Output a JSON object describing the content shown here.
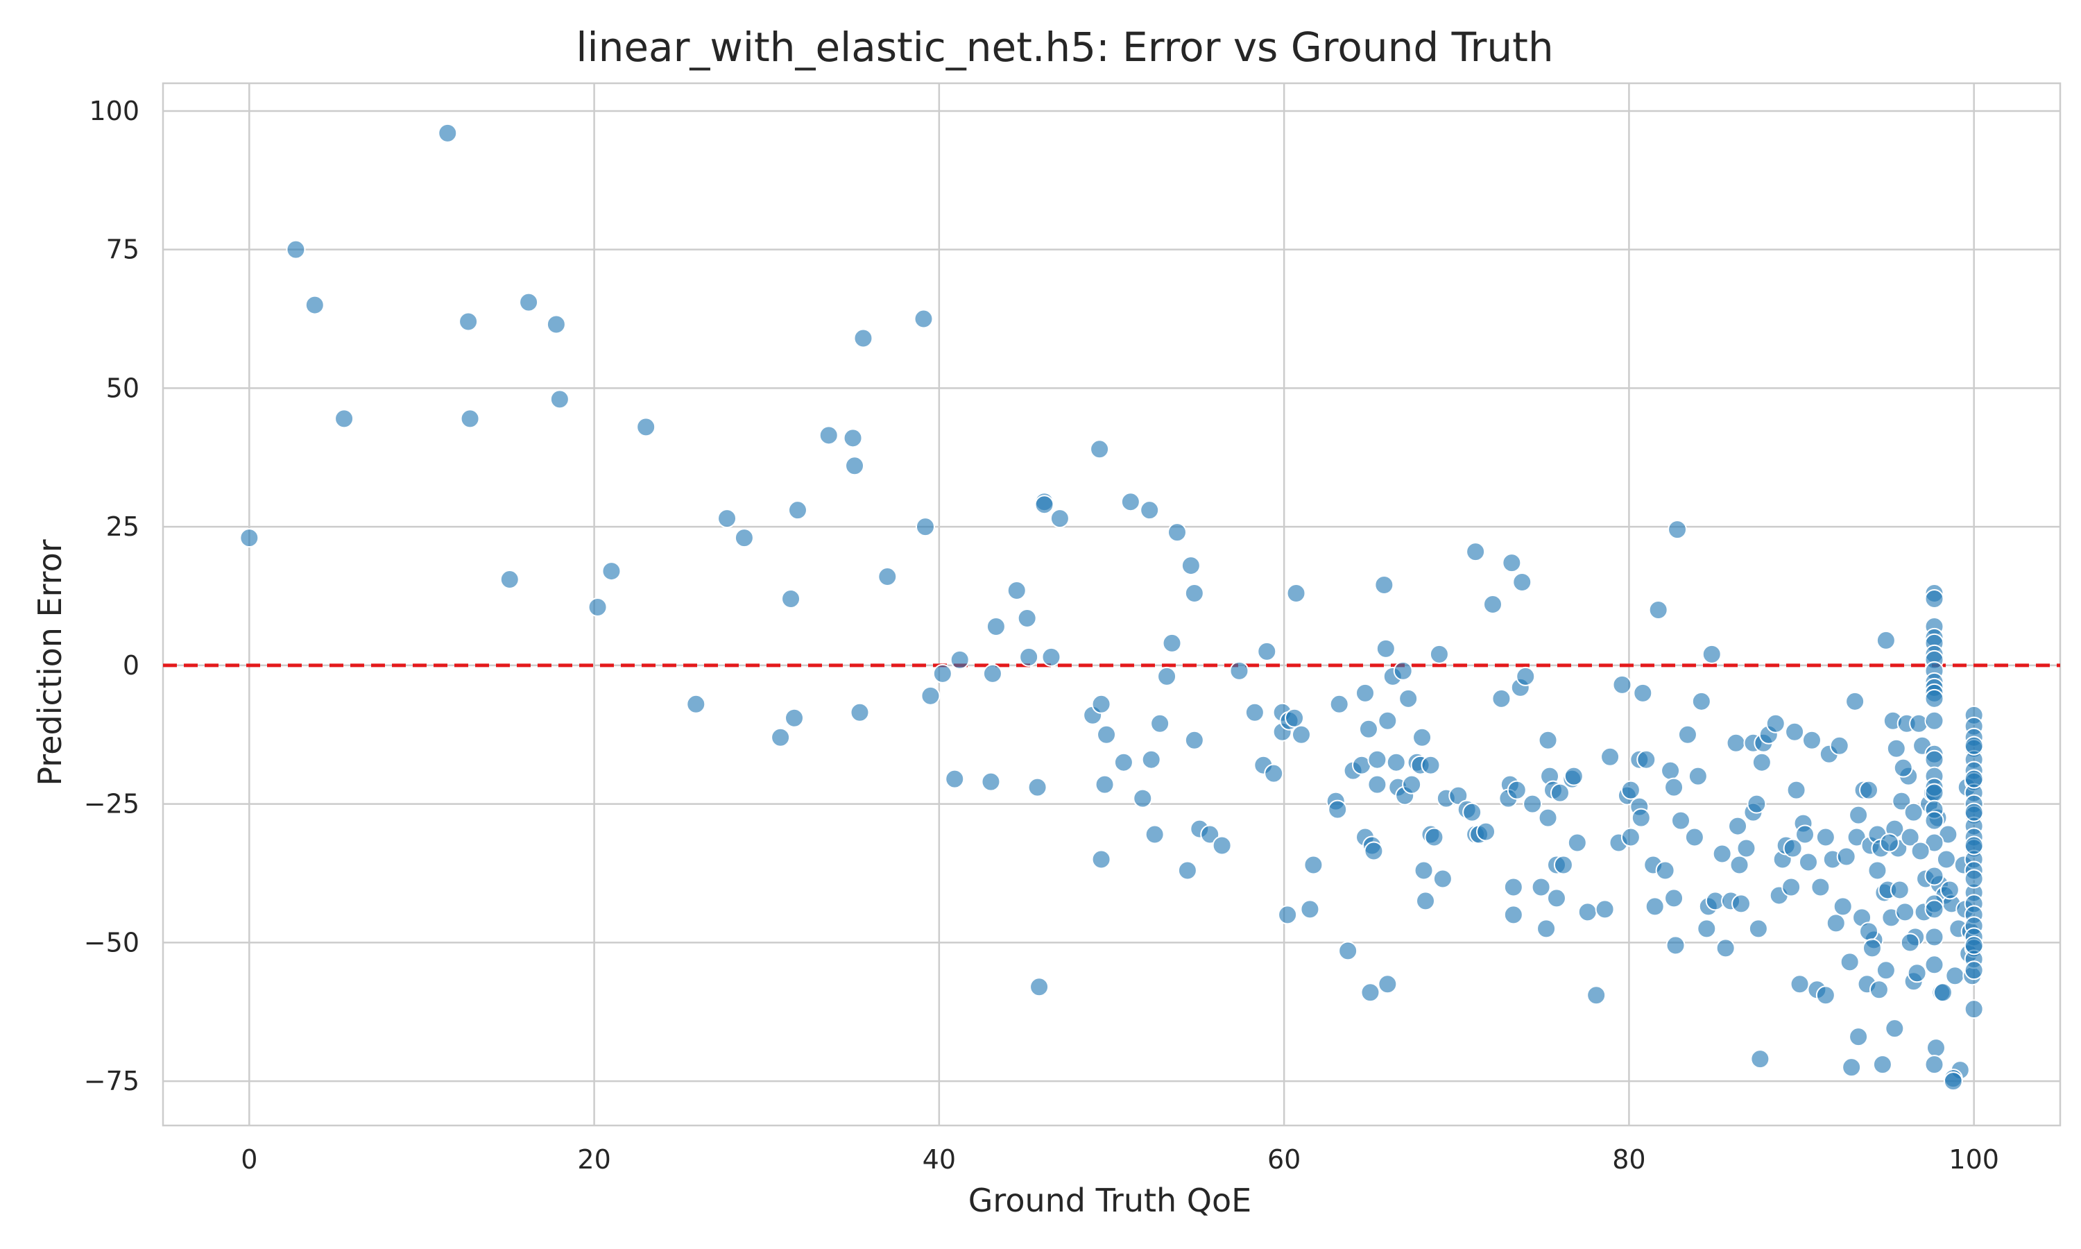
{
  "chart_data": {
    "type": "scatter",
    "title": "linear_with_elastic_net.h5: Error vs Ground Truth",
    "xlabel": "Ground Truth QoE",
    "ylabel": "Prediction Error",
    "xlim": [
      -5,
      105
    ],
    "ylim": [
      -83,
      105
    ],
    "xticks": [
      0,
      20,
      40,
      60,
      80,
      100
    ],
    "yticks": [
      -75,
      -50,
      -25,
      0,
      25,
      50,
      75,
      100
    ],
    "xtick_labels": [
      "0",
      "20",
      "40",
      "60",
      "80",
      "100"
    ],
    "ytick_labels": [
      "−75",
      "−50",
      "−25",
      "0",
      "25",
      "50",
      "75",
      "100"
    ],
    "grid": true,
    "reference_line": {
      "y": 0,
      "style": "dashed",
      "color": "#e41a1c"
    },
    "point_color": "#1f77b4",
    "points": [
      [
        0,
        23
      ],
      [
        2.7,
        75
      ],
      [
        3.8,
        65
      ],
      [
        5.5,
        44.5
      ],
      [
        11.5,
        96
      ],
      [
        12.7,
        62
      ],
      [
        12.8,
        44.5
      ],
      [
        15.1,
        15.5
      ],
      [
        16.2,
        65.5
      ],
      [
        17.8,
        61.5
      ],
      [
        18,
        48
      ],
      [
        20.2,
        10.5
      ],
      [
        21,
        17
      ],
      [
        23,
        43
      ],
      [
        25.9,
        -7
      ],
      [
        27.7,
        26.5
      ],
      [
        28.7,
        23
      ],
      [
        30.8,
        -13
      ],
      [
        31.4,
        12
      ],
      [
        31.6,
        -9.5
      ],
      [
        31.8,
        28
      ],
      [
        33.6,
        41.5
      ],
      [
        35,
        41
      ],
      [
        35.1,
        36
      ],
      [
        35.4,
        -8.5
      ],
      [
        35.6,
        59
      ],
      [
        37,
        16
      ],
      [
        39.1,
        62.5
      ],
      [
        39.2,
        25
      ],
      [
        39.5,
        -5.5
      ],
      [
        40.2,
        -1.5
      ],
      [
        40.9,
        -20.5
      ],
      [
        41.2,
        1
      ],
      [
        43.1,
        -1.5
      ],
      [
        43.3,
        7
      ],
      [
        43,
        -21
      ],
      [
        44.5,
        13.5
      ],
      [
        45.1,
        8.5
      ],
      [
        45.2,
        1.5
      ],
      [
        45.7,
        -22
      ],
      [
        45.8,
        -58
      ],
      [
        46.1,
        29.5
      ],
      [
        46.1,
        29
      ],
      [
        46.5,
        1.5
      ],
      [
        47,
        26.5
      ],
      [
        48.9,
        -9
      ],
      [
        49.3,
        39
      ],
      [
        49.4,
        -7
      ],
      [
        49.4,
        -35
      ],
      [
        49.6,
        -21.5
      ],
      [
        49.7,
        -12.5
      ],
      [
        50.7,
        -17.5
      ],
      [
        51.1,
        29.5
      ],
      [
        51.8,
        -24
      ],
      [
        52.2,
        28
      ],
      [
        52.3,
        -17
      ],
      [
        52.5,
        -30.5
      ],
      [
        52.8,
        -10.5
      ],
      [
        53.2,
        -2
      ],
      [
        53.5,
        4
      ],
      [
        53.8,
        24
      ],
      [
        54.4,
        -37
      ],
      [
        54.6,
        18
      ],
      [
        54.8,
        13
      ],
      [
        54.8,
        -13.5
      ],
      [
        55.1,
        -29.5
      ],
      [
        55.7,
        -30.5
      ],
      [
        56.4,
        -32.5
      ],
      [
        57.4,
        -1
      ],
      [
        58.3,
        -8.5
      ],
      [
        58.8,
        -18
      ],
      [
        59,
        2.5
      ],
      [
        59.4,
        -19.5
      ],
      [
        59.9,
        -12
      ],
      [
        59.9,
        -8.5
      ],
      [
        60.2,
        -45
      ],
      [
        60.3,
        -10
      ],
      [
        60.6,
        -9.5
      ],
      [
        60.7,
        13
      ],
      [
        61,
        -12.5
      ],
      [
        61.5,
        -44
      ],
      [
        61.7,
        -36
      ],
      [
        63,
        -24.5
      ],
      [
        63.1,
        -26
      ],
      [
        63.2,
        -7
      ],
      [
        63.7,
        -51.5
      ],
      [
        64,
        -19
      ],
      [
        64.5,
        -18
      ],
      [
        64.7,
        -5
      ],
      [
        64.7,
        -31
      ],
      [
        64.9,
        -11.5
      ],
      [
        65,
        -59
      ],
      [
        65.1,
        -32.5
      ],
      [
        65.2,
        -33.5
      ],
      [
        65.4,
        -21.5
      ],
      [
        65.4,
        -17
      ],
      [
        65.8,
        14.5
      ],
      [
        65.9,
        3
      ],
      [
        66,
        -57.5
      ],
      [
        66,
        -10
      ],
      [
        66.3,
        -2
      ],
      [
        66.5,
        -17.5
      ],
      [
        66.6,
        -22
      ],
      [
        66.9,
        -1
      ],
      [
        67,
        -23.5
      ],
      [
        67.2,
        -6
      ],
      [
        67.4,
        -21.5
      ],
      [
        67.7,
        -17.5
      ],
      [
        67.9,
        -18
      ],
      [
        68,
        -13
      ],
      [
        68.1,
        -37
      ],
      [
        68.2,
        -42.5
      ],
      [
        68.5,
        -18
      ],
      [
        68.5,
        -30.5
      ],
      [
        68.7,
        -31
      ],
      [
        69,
        2
      ],
      [
        69.2,
        -38.5
      ],
      [
        69.4,
        -24
      ],
      [
        70.1,
        -23.5
      ],
      [
        70.6,
        -26
      ],
      [
        70.9,
        -26.5
      ],
      [
        71.1,
        20.5
      ],
      [
        71.1,
        -30.5
      ],
      [
        71.3,
        -30.5
      ],
      [
        71.7,
        -30
      ],
      [
        72.1,
        11
      ],
      [
        72.6,
        -6
      ],
      [
        73.1,
        -21.5
      ],
      [
        73,
        -24
      ],
      [
        73.2,
        18.5
      ],
      [
        73.3,
        -45
      ],
      [
        73.3,
        -40
      ],
      [
        73.5,
        -22.5
      ],
      [
        73.7,
        -4
      ],
      [
        73.8,
        15
      ],
      [
        74,
        -2
      ],
      [
        74.4,
        -25
      ],
      [
        74.9,
        -40
      ],
      [
        75.2,
        -47.5
      ],
      [
        75.3,
        -27.5
      ],
      [
        75.3,
        -13.5
      ],
      [
        75.4,
        -20
      ],
      [
        75.6,
        -22.5
      ],
      [
        75.8,
        -36
      ],
      [
        75.8,
        -42
      ],
      [
        76,
        -23
      ],
      [
        76.2,
        -36
      ],
      [
        76.7,
        -20.5
      ],
      [
        76.8,
        -20
      ],
      [
        77,
        -32
      ],
      [
        77.6,
        -44.5
      ],
      [
        78.1,
        -59.5
      ],
      [
        78.6,
        -44
      ],
      [
        78.9,
        -16.5
      ],
      [
        79.4,
        -32
      ],
      [
        79.6,
        -3.5
      ],
      [
        79.9,
        -23.5
      ],
      [
        80.1,
        -31
      ],
      [
        80.1,
        -22.5
      ],
      [
        80.6,
        -17
      ],
      [
        80.6,
        -25.5
      ],
      [
        80.7,
        -27.5
      ],
      [
        80.8,
        -5
      ],
      [
        81,
        -17
      ],
      [
        81.4,
        -36
      ],
      [
        81.5,
        -43.5
      ],
      [
        81.7,
        10
      ],
      [
        82.1,
        -37
      ],
      [
        82.4,
        -19
      ],
      [
        82.6,
        -42
      ],
      [
        82.6,
        -22
      ],
      [
        82.7,
        -50.5
      ],
      [
        82.8,
        24.5
      ],
      [
        83,
        -28
      ],
      [
        83.4,
        -12.5
      ],
      [
        83.8,
        -31
      ],
      [
        84,
        -20
      ],
      [
        84.2,
        -6.5
      ],
      [
        84.5,
        -47.5
      ],
      [
        84.6,
        -43.5
      ],
      [
        84.8,
        2
      ],
      [
        85,
        -42.5
      ],
      [
        85.4,
        -34
      ],
      [
        85.6,
        -51
      ],
      [
        85.9,
        -42.5
      ],
      [
        86.2,
        -14
      ],
      [
        86.3,
        -29
      ],
      [
        86.4,
        -36
      ],
      [
        86.5,
        -43
      ],
      [
        86.8,
        -33
      ],
      [
        87.2,
        -14
      ],
      [
        87.2,
        -26.5
      ],
      [
        87.4,
        -25
      ],
      [
        87.5,
        -47.5
      ],
      [
        87.6,
        -71
      ],
      [
        87.7,
        -17.5
      ],
      [
        87.8,
        -14
      ],
      [
        88.1,
        -12.5
      ],
      [
        88.5,
        -10.5
      ],
      [
        88.7,
        -41.5
      ],
      [
        88.9,
        -35
      ],
      [
        89.1,
        -32.5
      ],
      [
        89.4,
        -40
      ],
      [
        89.5,
        -33
      ],
      [
        89.6,
        -12
      ],
      [
        89.7,
        -22.5
      ],
      [
        89.9,
        -57.5
      ],
      [
        90.1,
        -28.5
      ],
      [
        90.2,
        -30.5
      ],
      [
        90.4,
        -35.5
      ],
      [
        90.6,
        -13.5
      ],
      [
        90.9,
        -58.5
      ],
      [
        91.1,
        -40
      ],
      [
        91.4,
        -59.5
      ],
      [
        91.4,
        -31
      ],
      [
        91.6,
        -16
      ],
      [
        91.8,
        -35
      ],
      [
        92,
        -46.5
      ],
      [
        92.2,
        -14.5
      ],
      [
        92.4,
        -43.5
      ],
      [
        92.6,
        -34.5
      ],
      [
        92.8,
        -53.5
      ],
      [
        92.9,
        -72.5
      ],
      [
        93.1,
        -6.5
      ],
      [
        93.2,
        -31
      ],
      [
        93.3,
        -27
      ],
      [
        93.6,
        -22.5
      ],
      [
        93.8,
        -57.5
      ],
      [
        93.9,
        -22.5
      ],
      [
        94,
        -32.5
      ],
      [
        94.2,
        -49.5
      ],
      [
        94.4,
        -37
      ],
      [
        94.4,
        -30.5
      ],
      [
        94.6,
        -33
      ],
      [
        94.8,
        -41
      ],
      [
        94.9,
        -55
      ],
      [
        95,
        -40.5
      ],
      [
        95.2,
        -45.5
      ],
      [
        95.3,
        -10
      ],
      [
        95.4,
        -29.5
      ],
      [
        95.6,
        -33
      ],
      [
        95.8,
        -24.5
      ],
      [
        96,
        -44.5
      ],
      [
        96.1,
        -10.5
      ],
      [
        96.3,
        -31
      ],
      [
        96.5,
        -57
      ],
      [
        96.6,
        -49
      ],
      [
        96.8,
        -10.5
      ],
      [
        97,
        -14.5
      ],
      [
        97.1,
        -44.5
      ],
      [
        97.2,
        -38.5
      ],
      [
        97.4,
        -25
      ],
      [
        97.6,
        -23
      ],
      [
        97.8,
        -69
      ],
      [
        97.9,
        -27.5
      ],
      [
        98,
        -39.5
      ],
      [
        98.1,
        -59
      ],
      [
        98.3,
        -41.5
      ],
      [
        98.4,
        -35
      ],
      [
        98.5,
        -30.5
      ],
      [
        98.7,
        -43
      ],
      [
        98.9,
        -56
      ],
      [
        99.1,
        -47.5
      ],
      [
        99.2,
        -73
      ],
      [
        99.4,
        -36
      ],
      [
        99.6,
        -22
      ],
      [
        99.8,
        -48
      ],
      [
        100,
        -62
      ],
      [
        99.9,
        -56
      ],
      [
        99.7,
        -52
      ],
      [
        99.5,
        -44
      ],
      [
        100,
        -9
      ],
      [
        100,
        -11
      ],
      [
        100,
        -13
      ],
      [
        100,
        -15
      ],
      [
        100,
        -17
      ],
      [
        100,
        -19
      ],
      [
        100,
        -21
      ],
      [
        100,
        -23
      ],
      [
        100,
        -25
      ],
      [
        100,
        -27
      ],
      [
        100,
        -29
      ],
      [
        100,
        -31
      ],
      [
        100,
        -33
      ],
      [
        100,
        -35
      ],
      [
        100,
        -37
      ],
      [
        100,
        -41
      ],
      [
        100,
        -43
      ],
      [
        100,
        -45
      ],
      [
        100,
        -47
      ],
      [
        100,
        -49
      ],
      [
        100,
        -51
      ],
      [
        100,
        -53
      ],
      [
        100,
        -55
      ],
      [
        100,
        -14.5
      ],
      [
        100,
        -20.5
      ],
      [
        100,
        -26.5
      ],
      [
        100,
        -32.5
      ],
      [
        100,
        -38.5
      ],
      [
        100,
        -50.5
      ],
      [
        97.7,
        13
      ],
      [
        97.7,
        12
      ],
      [
        97.7,
        7
      ],
      [
        97.7,
        5
      ],
      [
        97.7,
        4
      ],
      [
        97.7,
        2
      ],
      [
        97.7,
        1
      ],
      [
        97.7,
        -1
      ],
      [
        97.7,
        -3
      ],
      [
        97.7,
        -4
      ],
      [
        97.7,
        -5
      ],
      [
        97.7,
        -6
      ],
      [
        97.7,
        -10
      ],
      [
        97.7,
        -16
      ],
      [
        97.7,
        -17
      ],
      [
        97.7,
        -20
      ],
      [
        97.7,
        -22
      ],
      [
        97.7,
        -23
      ],
      [
        97.7,
        -26
      ],
      [
        97.7,
        -28
      ],
      [
        97.7,
        -32
      ],
      [
        97.7,
        -38
      ],
      [
        97.7,
        -43
      ],
      [
        97.7,
        -44
      ],
      [
        97.7,
        -49
      ],
      [
        97.7,
        -54
      ],
      [
        97.7,
        -72
      ],
      [
        98.8,
        -74.5
      ],
      [
        98.8,
        -75
      ],
      [
        98.2,
        -59
      ],
      [
        98.6,
        -40.5
      ],
      [
        96.9,
        -33.5
      ],
      [
        96.5,
        -26.5
      ],
      [
        96.2,
        -20
      ],
      [
        95.9,
        -18.5
      ],
      [
        95.5,
        -15
      ],
      [
        94.9,
        4.5
      ],
      [
        95.1,
        -32
      ],
      [
        95.7,
        -40.5
      ],
      [
        96.3,
        -50
      ],
      [
        96.7,
        -55.5
      ],
      [
        93.5,
        -45.5
      ],
      [
        93.9,
        -48
      ],
      [
        94.1,
        -51
      ],
      [
        94.5,
        -58.5
      ],
      [
        95.4,
        -65.5
      ],
      [
        94.7,
        -72
      ],
      [
        93.3,
        -67
      ]
    ]
  }
}
